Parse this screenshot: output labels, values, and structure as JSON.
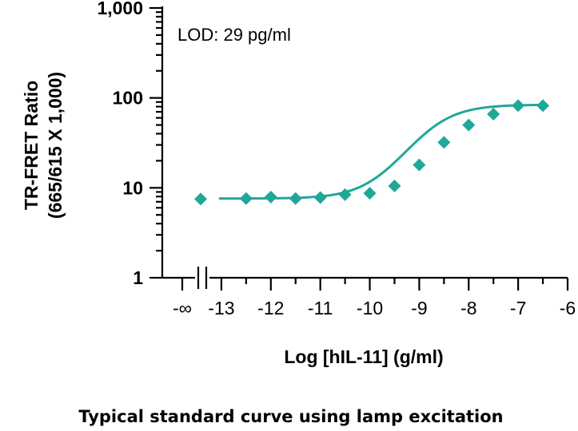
{
  "chart_data": {
    "type": "scatter",
    "ylabel": [
      "TR-FRET Ratio",
      "(665/615 X 1,000)"
    ],
    "xlabel": "Log [hIL-11] (g/ml)",
    "yscale": "log",
    "ylim": [
      1,
      1000
    ],
    "xlim": [
      -13.5,
      -6
    ],
    "y_ticks": [
      1,
      10,
      100,
      1000
    ],
    "y_tick_labels": [
      "1",
      "10",
      "100",
      "1,000"
    ],
    "x_ticks": [
      -13,
      -12,
      -11,
      -10,
      -9,
      -8,
      -7,
      -6
    ],
    "x_tick_labels": [
      "-13",
      "-12",
      "-11",
      "-10",
      "-9",
      "-8",
      "-7",
      "-6"
    ],
    "x_blank_label": "-∞",
    "annotation": "LOD: 29 pg/ml",
    "caption": "Typical standard curve using lamp excitation",
    "color": "#1fa89a",
    "blank_point": {
      "y": 7.5
    },
    "points": [
      {
        "x": -12.5,
        "y": 7.6
      },
      {
        "x": -12.0,
        "y": 7.9
      },
      {
        "x": -11.5,
        "y": 7.6
      },
      {
        "x": -11.0,
        "y": 7.8
      },
      {
        "x": -10.5,
        "y": 8.4
      },
      {
        "x": -10.0,
        "y": 8.7
      },
      {
        "x": -9.5,
        "y": 10.5
      },
      {
        "x": -9.0,
        "y": 18
      },
      {
        "x": -8.5,
        "y": 32
      },
      {
        "x": -8.0,
        "y": 50
      },
      {
        "x": -7.5,
        "y": 66
      },
      {
        "x": -7.0,
        "y": 82
      },
      {
        "x": -6.5,
        "y": 82
      }
    ],
    "fit": {
      "bottom": 7.6,
      "top": 84,
      "logEC50": -8.75,
      "hill": 1.0,
      "x_start": -12.5,
      "x_end": -6.5
    }
  }
}
